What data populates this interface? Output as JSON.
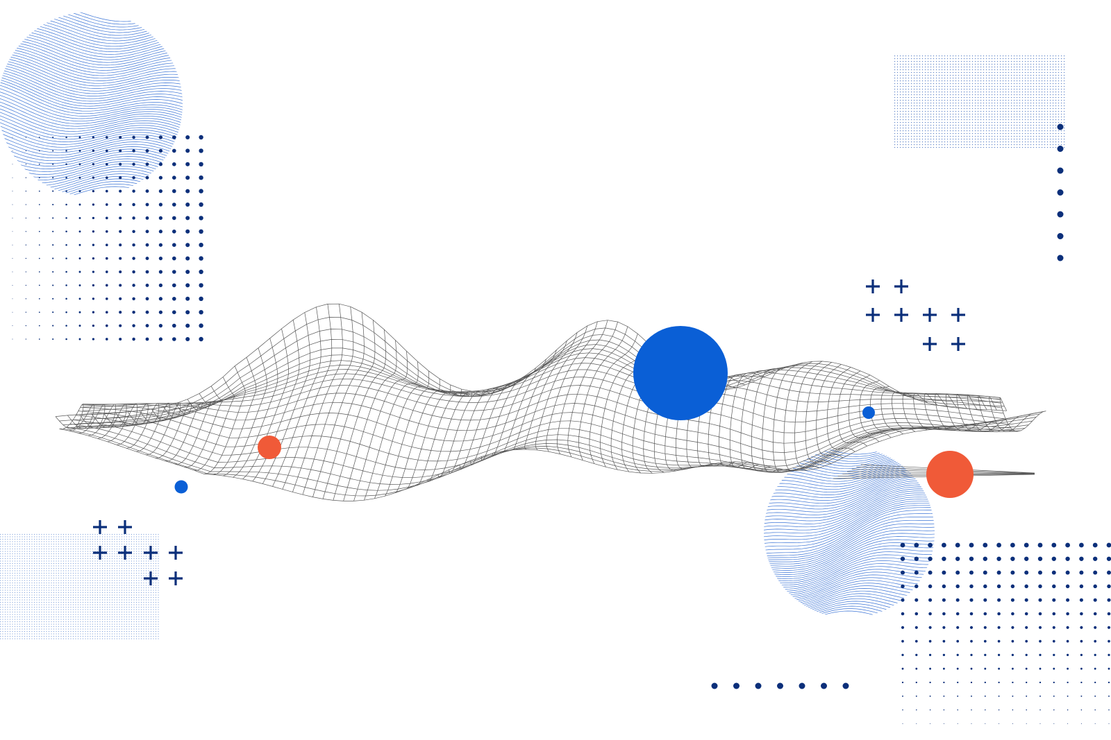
{
  "palette": {
    "background": "#ffffff",
    "wireframe": "#3a3a3a",
    "light_blue_lines": "#3b74d6",
    "navy_dots": "#0b2f7a",
    "accent_blue": "#0a5fd6",
    "accent_orange": "#f05a38"
  },
  "icons": {
    "plus": "plus-icon",
    "dot": "dot-icon"
  }
}
